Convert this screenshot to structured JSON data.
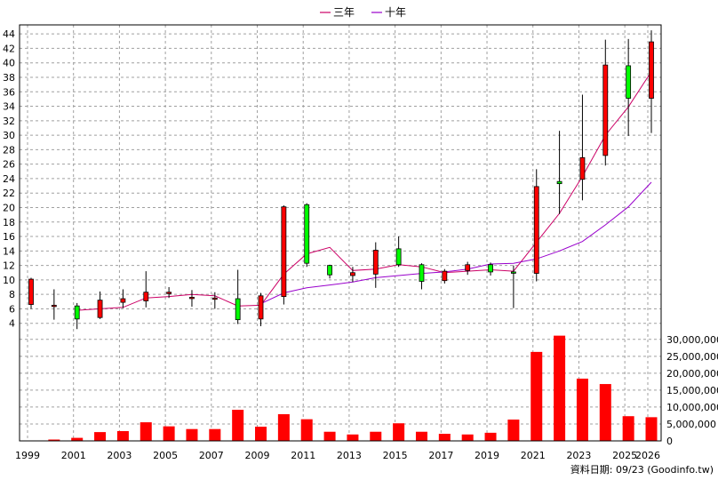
{
  "chart_data": {
    "type": "candlestick",
    "categories": [
      "1999",
      "2000",
      "2001",
      "2002",
      "2003",
      "2004",
      "2005",
      "2006",
      "2007",
      "2008",
      "2009",
      "2010",
      "2011",
      "2012",
      "2013",
      "2014",
      "2015",
      "2016",
      "2017",
      "2018",
      "2019",
      "2020",
      "2021",
      "2022",
      "2023",
      "2024",
      "2025",
      "2026"
    ],
    "x_tick_labels": [
      "1999",
      "2001",
      "2003",
      "2005",
      "2007",
      "2009",
      "2011",
      "2013",
      "2015",
      "2017",
      "2019",
      "2021",
      "2023",
      "2025",
      "2026"
    ],
    "legend": [
      {
        "name": "三年",
        "color": "#cc0066"
      },
      {
        "name": "十年",
        "color": "#9900cc"
      }
    ],
    "price_axis": {
      "ylim": [
        2,
        45
      ],
      "ticks": [
        4,
        6,
        8,
        10,
        12,
        14,
        16,
        18,
        20,
        22,
        24,
        26,
        28,
        30,
        32,
        34,
        36,
        38,
        40,
        42,
        44
      ]
    },
    "candles": [
      {
        "year": "1999",
        "open": 6.6,
        "close": 10.1,
        "high": 10.3,
        "low": 6.0
      },
      {
        "year": "2000",
        "open": 6.5,
        "close": 6.5,
        "high": 8.7,
        "low": 4.5
      },
      {
        "year": "2001",
        "open": 6.4,
        "close": 4.6,
        "high": 6.8,
        "low": 3.2
      },
      {
        "year": "2002",
        "open": 4.8,
        "close": 7.2,
        "high": 8.4,
        "low": 4.6
      },
      {
        "year": "2003",
        "open": 6.9,
        "close": 7.4,
        "high": 8.7,
        "low": 6.1
      },
      {
        "year": "2004",
        "open": 7.1,
        "close": 8.3,
        "high": 11.2,
        "low": 6.2
      },
      {
        "year": "2005",
        "open": 8.1,
        "close": 8.3,
        "high": 9.0,
        "low": 7.5
      },
      {
        "year": "2006",
        "open": 7.6,
        "close": 7.6,
        "high": 8.6,
        "low": 6.3
      },
      {
        "year": "2007",
        "open": 7.4,
        "close": 7.5,
        "high": 8.3,
        "low": 6.0
      },
      {
        "year": "2008",
        "open": 7.4,
        "close": 4.5,
        "high": 11.4,
        "low": 3.9
      },
      {
        "year": "2009",
        "open": 4.6,
        "close": 7.8,
        "high": 8.2,
        "low": 3.6
      },
      {
        "year": "2010",
        "open": 7.7,
        "close": 20.1,
        "high": 20.3,
        "low": 6.6
      },
      {
        "year": "2011",
        "open": 20.4,
        "close": 12.3,
        "high": 20.6,
        "low": 11.8
      },
      {
        "year": "2012",
        "open": 12.0,
        "close": 10.7,
        "high": 12.1,
        "low": 10.2
      },
      {
        "year": "2013",
        "open": 10.6,
        "close": 11.0,
        "high": 11.8,
        "low": 9.7
      },
      {
        "year": "2014",
        "open": 10.8,
        "close": 14.1,
        "high": 15.2,
        "low": 8.9
      },
      {
        "year": "2015",
        "open": 14.3,
        "close": 12.1,
        "high": 16.0,
        "low": 11.8
      },
      {
        "year": "2016",
        "open": 12.1,
        "close": 9.8,
        "high": 12.3,
        "low": 8.7
      },
      {
        "year": "2017",
        "open": 9.9,
        "close": 11.2,
        "high": 11.5,
        "low": 9.5
      },
      {
        "year": "2018",
        "open": 11.3,
        "close": 12.1,
        "high": 12.5,
        "low": 10.7
      },
      {
        "year": "2019",
        "open": 12.1,
        "close": 11.1,
        "high": 12.4,
        "low": 10.6
      },
      {
        "year": "2020",
        "open": 11.1,
        "close": 11.0,
        "high": 12.0,
        "low": 6.1
      },
      {
        "year": "2021",
        "open": 10.9,
        "close": 22.9,
        "high": 25.3,
        "low": 9.8
      },
      {
        "year": "2022",
        "open": 23.6,
        "close": 23.3,
        "high": 30.6,
        "low": 19.1
      },
      {
        "year": "2023",
        "open": 23.9,
        "close": 26.9,
        "high": 35.6,
        "low": 21.0
      },
      {
        "year": "2024",
        "open": 27.2,
        "close": 39.7,
        "high": 43.2,
        "low": 25.8
      },
      {
        "year": "2025",
        "open": 39.6,
        "close": 35.1,
        "high": 43.3,
        "low": 29.9
      },
      {
        "year": "2026",
        "open": 35.1,
        "close": 42.9,
        "high": 44.5,
        "low": 30.3
      }
    ],
    "ma_3yr": [
      null,
      null,
      5.8,
      6.0,
      6.2,
      7.5,
      7.7,
      8.0,
      7.8,
      6.4,
      6.5,
      10.8,
      13.6,
      14.5,
      11.3,
      11.5,
      12.1,
      11.8,
      11.0,
      11.2,
      11.4,
      11.2,
      15.2,
      19.2,
      24.3,
      30.0,
      33.9,
      38.8
    ],
    "ma_10yr": [
      null,
      null,
      null,
      null,
      null,
      null,
      null,
      null,
      null,
      null,
      6.7,
      8.2,
      8.9,
      9.3,
      9.7,
      10.3,
      10.6,
      10.9,
      11.1,
      11.5,
      12.2,
      12.3,
      12.9,
      14.0,
      15.3,
      17.6,
      20.1,
      23.5
    ],
    "volume_axis": {
      "ylim": [
        0,
        31000000
      ],
      "ticks": [
        0,
        5000000,
        10000000,
        15000000,
        20000000,
        25000000,
        30000000
      ],
      "tick_labels": [
        "0",
        "5,000,000",
        "10,000,000",
        "15,000,000",
        "20,000,000",
        "25,000,000",
        "30,000,000"
      ]
    },
    "volume": [
      100000,
      400000,
      900000,
      2600000,
      2900000,
      5500000,
      4300000,
      3500000,
      3500000,
      9200000,
      4200000,
      7900000,
      6400000,
      2700000,
      1900000,
      2700000,
      5200000,
      2700000,
      2100000,
      1900000,
      2400000,
      6300000,
      26300000,
      31100000,
      18400000,
      16800000,
      7300000,
      7000000
    ],
    "colors": {
      "up": "#ff0000",
      "down": "#00ff00",
      "volume": "#ff0000",
      "grid": "#a0a0a0"
    },
    "grid": true,
    "legend_position": "top-center",
    "source_note": "資料日期: 09/23 (Goodinfo.tw)"
  }
}
